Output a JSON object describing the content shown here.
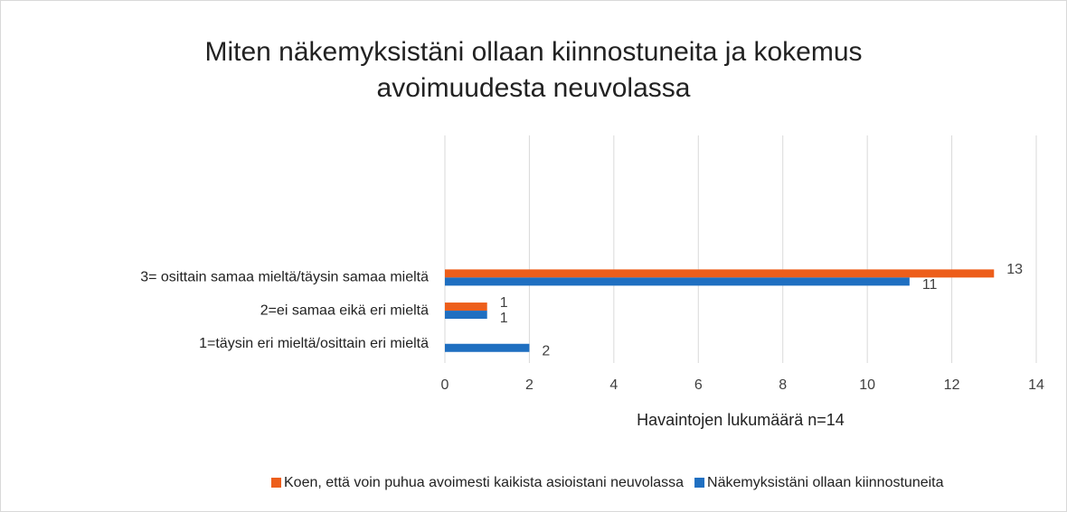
{
  "chart_data": {
    "type": "bar",
    "orientation": "horizontal",
    "title": "Miten näkemyksistäni ollaan kiinnostuneita ja kokemus avoimuudesta neuvolassa",
    "x_label": "Havaintojen lukumäärä n=14",
    "categories": [
      "3= osittain samaa mieltä/täysin samaa mieltä",
      "2=ei samaa eikä eri mieltä",
      "1=täysin eri mieltä/osittain eri mieltä"
    ],
    "series": [
      {
        "name": "Koen, että voin puhua avoimesti kaikista asioistani neuvolassa",
        "color": "#ed5e1b",
        "values": [
          13,
          1,
          null
        ]
      },
      {
        "name": "Näkemyksistäni ollaan kiinnostuneita",
        "color": "#1f6fc1",
        "values": [
          11,
          1,
          2
        ]
      }
    ],
    "xlim": [
      0,
      14
    ],
    "xticks": [
      0,
      2,
      4,
      6,
      8,
      10,
      12,
      14
    ],
    "grid": true,
    "legend": "bottom"
  }
}
